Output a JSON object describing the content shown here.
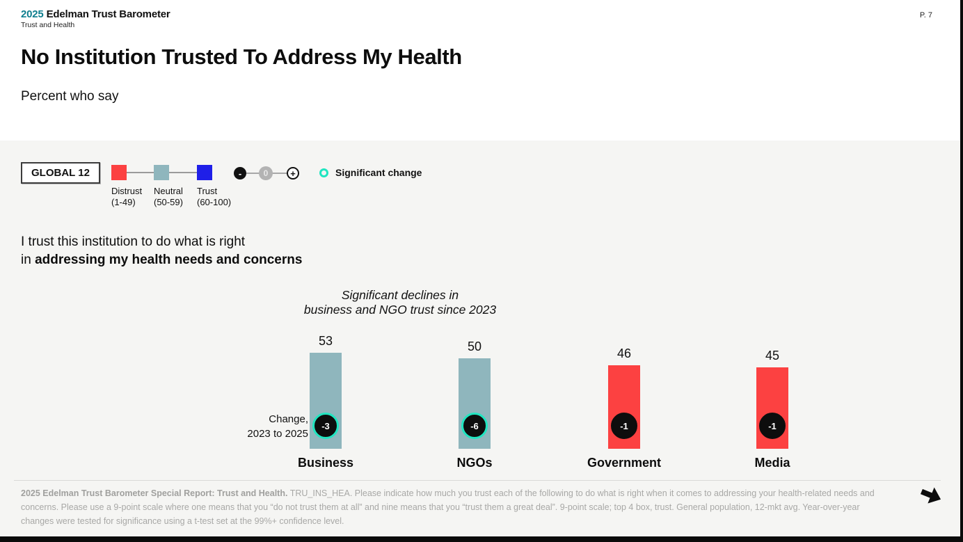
{
  "header": {
    "logo_year": "2025",
    "logo_brand": "Edelman Trust Barometer",
    "logo_subtitle": "Trust and Health",
    "page_number": "P. 7"
  },
  "title": "No Institution Trusted To Address My Health",
  "subtitle": "Percent who say",
  "legend": {
    "global_label": "GLOBAL 12",
    "scale": [
      {
        "label": "Distrust",
        "range": "(1-49)",
        "color": "#fc4141"
      },
      {
        "label": "Neutral",
        "range": "(50-59)",
        "color": "#8fb6bd"
      },
      {
        "label": "Trust",
        "range": "(60-100)",
        "color": "#1f1fe8"
      }
    ],
    "stepper": {
      "minus": "-",
      "zero": "0",
      "plus": "+"
    },
    "significant_label": "Significant change",
    "significant_ring_color": "#20e5c0"
  },
  "question": {
    "line1": "I trust this institution to do what is right",
    "line2_prefix": "in ",
    "line2_bold": "addressing my health needs and concerns"
  },
  "chart_data": {
    "type": "bar",
    "annotation_line1": "Significant declines in",
    "annotation_line2": "business and NGO trust since 2023",
    "change_row_label_line1": "Change,",
    "change_row_label_line2": "2023 to 2025",
    "categories": [
      "Business",
      "NGOs",
      "Government",
      "Media"
    ],
    "values": [
      53,
      50,
      46,
      45
    ],
    "value_labels": [
      "53",
      "50",
      "46",
      "45"
    ],
    "changes": [
      -3,
      -6,
      -1,
      -1
    ],
    "change_labels": [
      "-3",
      "-6",
      "-1",
      "-1"
    ],
    "significant": [
      true,
      true,
      false,
      false
    ],
    "bar_colors": [
      "#8fb6bd",
      "#8fb6bd",
      "#fc4141",
      "#fc4141"
    ],
    "ylim": [
      0,
      60
    ],
    "grid": false,
    "legend_position": "top-left"
  },
  "footer": {
    "bold": "2025 Edelman Trust Barometer Special Report: Trust and Health.",
    "text": " TRU_INS_HEA. Please indicate how much you trust each of the following to do what is right when it comes to addressing your health-related needs and concerns. Please use a 9-point scale where one means that you “do not trust them at all” and nine means that you “trust them a great deal”. 9-point scale; top 4 box, trust. General population, 12-mkt avg. Year-over-year changes were tested for significance using a t-test set at the 99%+ confidence level.",
    "next_arrow_name": "next"
  }
}
